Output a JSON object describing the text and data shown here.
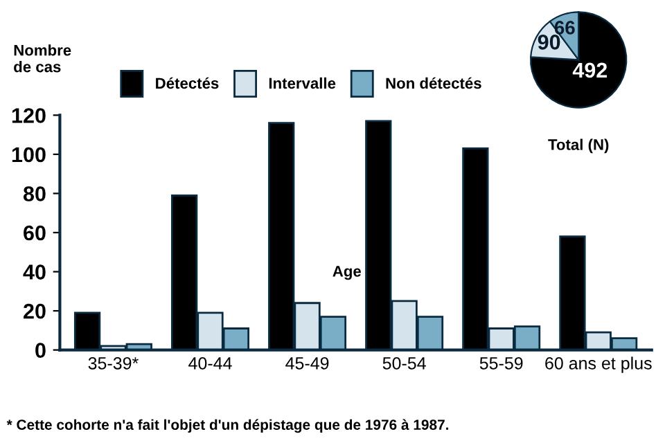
{
  "chart_data": [
    {
      "type": "bar",
      "ylabel": "Nombre de cas",
      "xlabel": "Age",
      "categories": [
        "35-39*",
        "40-44",
        "45-49",
        "50-54",
        "55-59",
        "60 ans et plus"
      ],
      "series": [
        {
          "name": "Détectés",
          "color": "#000000",
          "values": [
            19,
            79,
            116,
            117,
            103,
            58
          ]
        },
        {
          "name": "Intervalle",
          "color": "#d4e3ec",
          "values": [
            2,
            19,
            24,
            25,
            11,
            9
          ]
        },
        {
          "name": "Non détectés",
          "color": "#7aaec6",
          "values": [
            3,
            11,
            17,
            17,
            12,
            6
          ]
        }
      ],
      "ylim": [
        0,
        120
      ],
      "yticks": [
        0,
        20,
        40,
        60,
        80,
        100,
        120
      ],
      "grid": false,
      "legend": "top",
      "annotations": [
        "* Cette cohorte n'a fait l'objet d'un dépistage que de 1976 à 1987."
      ]
    },
    {
      "type": "pie",
      "title": "Total (N)",
      "categories": [
        null,
        null,
        null
      ],
      "values": [
        492,
        90,
        66
      ],
      "colors": [
        "#000000",
        "#d4e3ec",
        "#7aaec6"
      ],
      "data_labels": true
    }
  ]
}
